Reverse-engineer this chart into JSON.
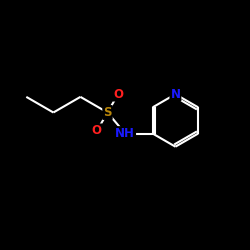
{
  "background_color": "#000000",
  "line_color": "#ffffff",
  "atom_colors": {
    "C": "#ffffff",
    "N": "#1a1aff",
    "O": "#ff2020",
    "S": "#b8860b"
  },
  "figsize": [
    2.5,
    2.5
  ],
  "dpi": 100,
  "lw": 1.5,
  "fontsize": 8.5
}
